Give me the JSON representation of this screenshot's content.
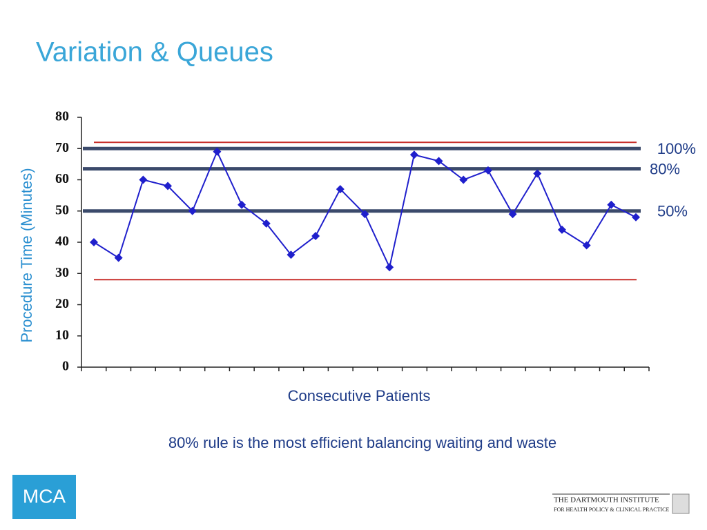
{
  "slide": {
    "title": "Variation & Queues",
    "caption": "80% rule is the most efficient balancing waiting and waste",
    "logo": "MCA",
    "footer_lines": [
      "THE DARTMOUTH INSTITUTE",
      "FOR HEALTH POLICY & CLINICAL PRACTICE"
    ]
  },
  "chart_data": {
    "type": "line",
    "x_label": "Consecutive Patients",
    "y_label": "Procedure Time (Minutes)",
    "categories": [
      null,
      null,
      null,
      null,
      null,
      null,
      null,
      null,
      null,
      null,
      null,
      null,
      null,
      null,
      null,
      null,
      null,
      null,
      null,
      null,
      null,
      null,
      null
    ],
    "series": [
      {
        "color": "#1f1fcc",
        "values": [
          40,
          35,
          60,
          58,
          50,
          69,
          52,
          46,
          36,
          42,
          57,
          49,
          32,
          68,
          66,
          60,
          63,
          49,
          62,
          44,
          39,
          52,
          48
        ]
      }
    ],
    "ylim": [
      0,
      80
    ],
    "yticks": [
      0,
      10,
      20,
      30,
      40,
      50,
      60,
      70,
      80
    ],
    "control_limits": {
      "color": "#c8302b",
      "values": [
        72,
        28
      ]
    },
    "reference_lines": [
      {
        "value": 70,
        "label": "100%",
        "color": "#3b4a6b"
      },
      {
        "value": 63.5,
        "label": "80%",
        "color": "#3b4a6b"
      },
      {
        "value": 50,
        "label": "50%",
        "color": "#3b4a6b"
      }
    ]
  }
}
